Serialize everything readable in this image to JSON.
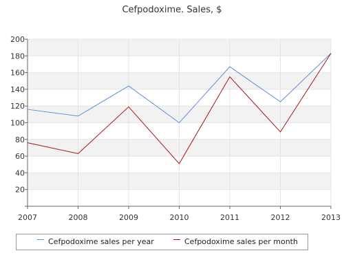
{
  "chart_data": {
    "type": "line",
    "title": "Cefpodoxime. Sales, $",
    "x": [
      "2007",
      "2008",
      "2009",
      "2010",
      "2011",
      "2012",
      "2013"
    ],
    "ylim": [
      0,
      200
    ],
    "yticks": [
      "20",
      "40",
      "60",
      "80",
      "100",
      "120",
      "140",
      "160",
      "180",
      "200"
    ],
    "grid": true,
    "legend_position": "bottom",
    "series": [
      {
        "name": "Cefpodoxime sales per year",
        "color": "#5b8fd6",
        "values": [
          116,
          108,
          144,
          100,
          167,
          125,
          183
        ]
      },
      {
        "name": "Cefpodoxime sales per month",
        "color": "#aa1111",
        "values": [
          76,
          63,
          119,
          51,
          155,
          89,
          183
        ]
      }
    ]
  }
}
